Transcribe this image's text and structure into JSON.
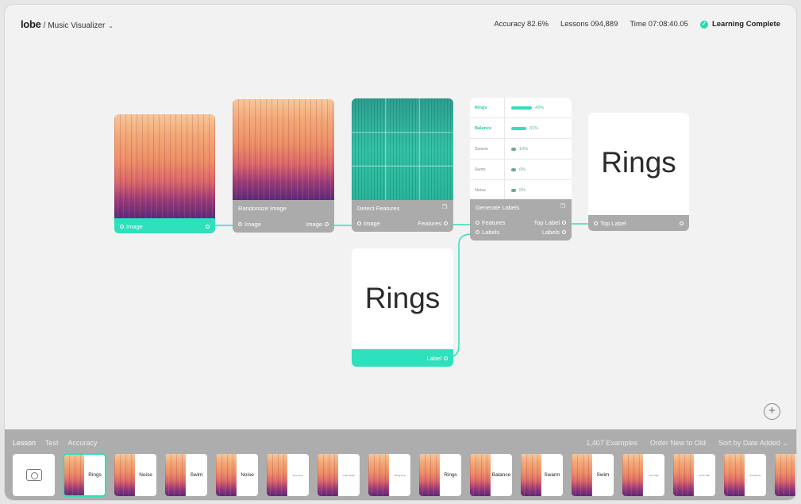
{
  "header": {
    "logo": "lobe",
    "separator": "/",
    "project_name": "Music Visualizer",
    "project_chevron": "chevron-down-icon",
    "accuracy": "Accuracy 82.6%",
    "lessons": "Lessons 094,889",
    "time": "Time 07:08:40.05",
    "status": "Learning Complete"
  },
  "colors": {
    "accent": "#2ee0bb",
    "panel": "#adadad",
    "background": "#f2f2f2"
  },
  "nodes": {
    "image": {
      "out_label": "Image"
    },
    "randomize": {
      "title": "Randomize Image",
      "in_label": "Image",
      "out_label": "Image"
    },
    "detect": {
      "title": "Detect Features",
      "in_label": "Image",
      "out_label": "Features",
      "icon": "duplicate-icon"
    },
    "generate": {
      "title": "Generate Labels",
      "in_features": "Features",
      "in_labels": "Labels",
      "out_top": "Top Label",
      "out_labels": "Labels",
      "icon": "duplicate-icon",
      "rows": [
        {
          "name": "Rings",
          "value": "43%",
          "fraction": 0.43
        },
        {
          "name": "Balance",
          "value": "31%",
          "fraction": 0.31
        },
        {
          "name": "Swarm",
          "value": "10%",
          "fraction": 0.1
        },
        {
          "name": "Swim",
          "value": "6%",
          "fraction": 0.06
        },
        {
          "name": "Noise",
          "value": "5%",
          "fraction": 0.05
        }
      ]
    },
    "top_label": {
      "text": "Rings",
      "in_label": "Top Label"
    },
    "label_input": {
      "text": "Rings",
      "out_label": "Label"
    }
  },
  "bottom": {
    "tabs": [
      "Lesson",
      "Test",
      "Accuracy"
    ],
    "examples": "1,407 Examples",
    "order": "Order New to Old",
    "sort": "Sort by Date Added",
    "camera_icon": "camera-icon",
    "thumbnails": [
      {
        "label": "Rings",
        "small": false
      },
      {
        "label": "Noise",
        "small": false
      },
      {
        "label": "Swim",
        "small": false
      },
      {
        "label": "Noise",
        "small": false
      },
      {
        "label": "Bee Hum",
        "small": true
      },
      {
        "label": "Cube Flash",
        "small": true
      },
      {
        "label": "String Pop",
        "small": true
      },
      {
        "label": "Rings",
        "small": false
      },
      {
        "label": "Balance",
        "small": false
      },
      {
        "label": "Swarm",
        "small": false
      },
      {
        "label": "Swim",
        "small": false
      },
      {
        "label": "Grid Play",
        "small": true
      },
      {
        "label": "Echo Fall",
        "small": true
      },
      {
        "label": "Grid Bloom",
        "small": true
      },
      {
        "label": "R",
        "small": false
      }
    ]
  }
}
